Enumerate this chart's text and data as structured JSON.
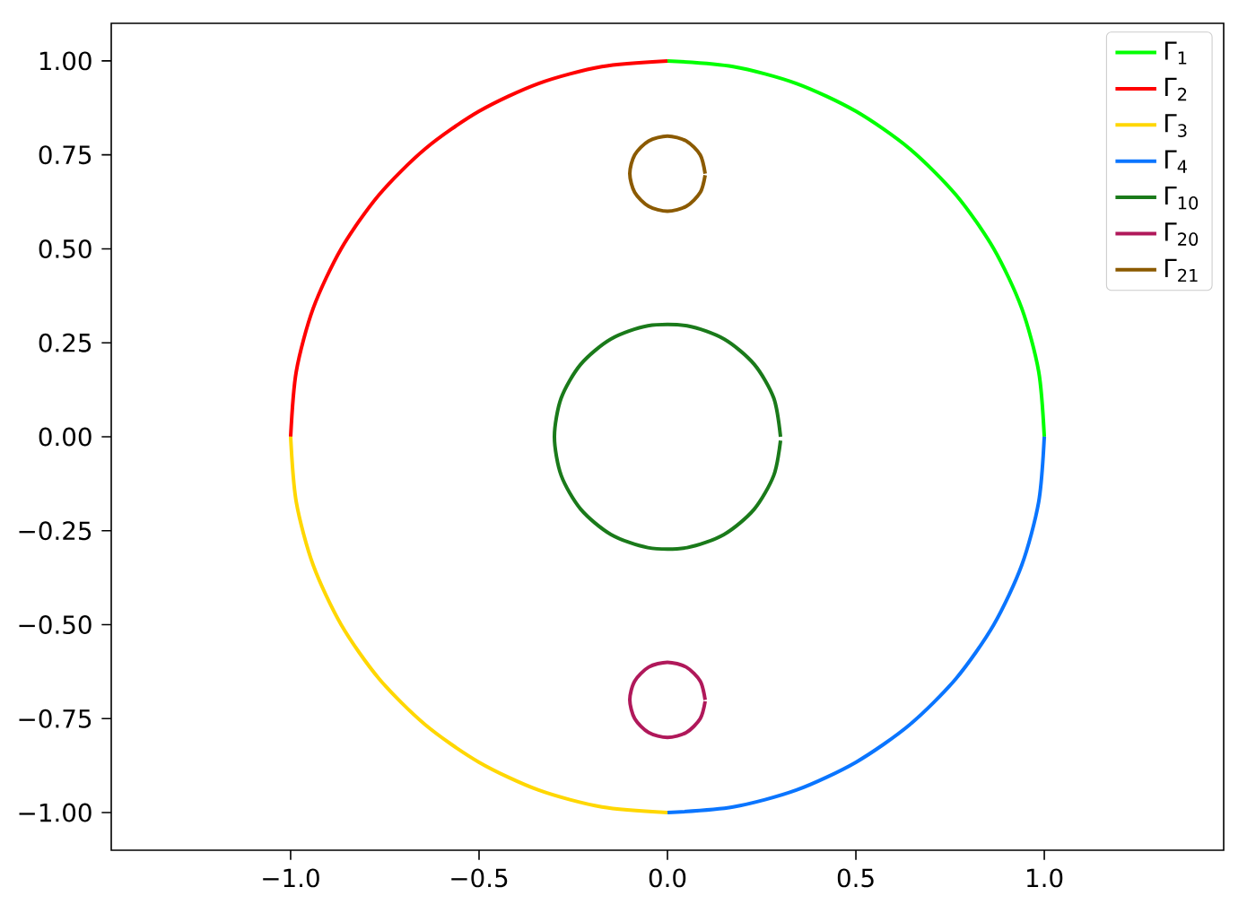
{
  "chart_data": {
    "type": "line",
    "xlim": [
      -1.476,
      1.476
    ],
    "ylim": [
      -1.1,
      1.1
    ],
    "xticks": [
      {
        "value": -1.0,
        "label": "−1.0"
      },
      {
        "value": -0.5,
        "label": "−0.5"
      },
      {
        "value": 0,
        "label": "0.0"
      },
      {
        "value": 0.5,
        "label": "0.5"
      },
      {
        "value": 1.0,
        "label": "1.0"
      }
    ],
    "yticks": [
      {
        "value": -1.0,
        "label": "−1.00"
      },
      {
        "value": -0.75,
        "label": "−0.75"
      },
      {
        "value": -0.5,
        "label": "−0.50"
      },
      {
        "value": -0.25,
        "label": "−0.25"
      },
      {
        "value": 0,
        "label": "0.00"
      },
      {
        "value": 0.25,
        "label": "0.25"
      },
      {
        "value": 0.5,
        "label": "0.50"
      },
      {
        "value": 0.75,
        "label": "0.75"
      },
      {
        "value": 1.0,
        "label": "1.00"
      }
    ],
    "legend": "top right",
    "grid": false,
    "marker": "none",
    "line_style": "solid",
    "series": [
      {
        "name": "Γ$_{1}$",
        "color": "#00ff00",
        "x": [
          1,
          0.985,
          0.94,
          0.866,
          0.766,
          0.643,
          0.5,
          0.342,
          0.174,
          0
        ],
        "values": [
          0,
          0.174,
          0.342,
          0.5,
          0.643,
          0.766,
          0.866,
          0.94,
          0.985,
          1
        ]
      },
      {
        "name": "Γ$_{2}$",
        "color": "#ff0000",
        "x": [
          0,
          -0.174,
          -0.342,
          -0.5,
          -0.643,
          -0.766,
          -0.866,
          -0.94,
          -0.985,
          -1
        ],
        "values": [
          1,
          0.985,
          0.94,
          0.866,
          0.766,
          0.643,
          0.5,
          0.342,
          0.174,
          0
        ]
      },
      {
        "name": "Γ$_{3}$",
        "color": "#ffd700",
        "x": [
          -1,
          -0.985,
          -0.94,
          -0.866,
          -0.766,
          -0.643,
          -0.5,
          -0.342,
          -0.174,
          0
        ],
        "values": [
          0,
          -0.174,
          -0.342,
          -0.5,
          -0.643,
          -0.766,
          -0.866,
          -0.94,
          -0.985,
          -1
        ]
      },
      {
        "name": "Γ$_{4}$",
        "color": "#0a75ff",
        "x": [
          0,
          0.174,
          0.342,
          0.5,
          0.643,
          0.766,
          0.866,
          0.94,
          0.985,
          1
        ],
        "values": [
          -1,
          -0.985,
          -0.94,
          -0.866,
          -0.766,
          -0.643,
          -0.5,
          -0.342,
          -0.174,
          0
        ]
      },
      {
        "name": "Γ$_{10}$",
        "color": "#1a7a1a",
        "x": [
          0.3,
          0.282,
          0.23,
          0.15,
          0.052,
          -0.052,
          -0.15,
          -0.23,
          -0.282,
          -0.3,
          -0.282,
          -0.23,
          -0.15,
          -0.052,
          0.052,
          0.15,
          0.23,
          0.282,
          0.3
        ],
        "values": [
          0,
          0.103,
          0.193,
          0.26,
          0.295,
          0.295,
          0.26,
          0.193,
          0.103,
          0,
          -0.103,
          -0.193,
          -0.26,
          -0.295,
          -0.295,
          -0.26,
          -0.193,
          -0.103,
          -0.01
        ]
      },
      {
        "name": "Γ$_{20}$",
        "color": "#b0185a",
        "x": [
          0.1,
          0.087,
          0.05,
          0,
          -0.05,
          -0.087,
          -0.1,
          -0.087,
          -0.05,
          0,
          0.05,
          0.087,
          0.1
        ],
        "values": [
          -0.7,
          -0.65,
          -0.613,
          -0.6,
          -0.613,
          -0.65,
          -0.7,
          -0.75,
          -0.787,
          -0.8,
          -0.787,
          -0.75,
          -0.704
        ]
      },
      {
        "name": "Γ$_{21}$",
        "color": "#8b5a00",
        "x": [
          0.1,
          0.087,
          0.05,
          0,
          -0.05,
          -0.087,
          -0.1,
          -0.087,
          -0.05,
          0,
          0.05,
          0.087,
          0.1
        ],
        "values": [
          0.7,
          0.75,
          0.787,
          0.8,
          0.787,
          0.75,
          0.7,
          0.65,
          0.613,
          0.6,
          0.613,
          0.65,
          0.696
        ]
      }
    ]
  }
}
